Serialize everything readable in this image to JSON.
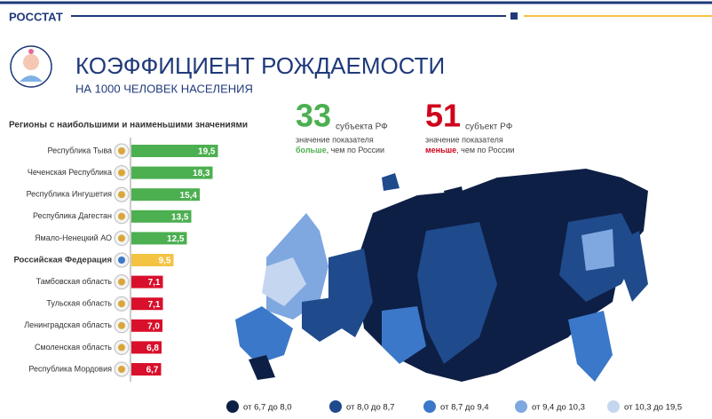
{
  "header": {
    "brand": "РОССТАТ",
    "title": "КОЭФФИЦИЕНТ РОЖДАЕМОСТИ",
    "subtitle": "НА 1000 ЧЕЛОВЕК НАСЕЛЕНИЯ"
  },
  "stats": [
    {
      "number": "33",
      "unit": "субъекта РФ",
      "line1": "значение показателя",
      "emphasis": "больше",
      "rest": ", чем по России",
      "color": "#4caf50"
    },
    {
      "number": "51",
      "unit": "субъект РФ",
      "line1": "значение показателя",
      "emphasis": "меньше",
      "rest": ", чем по России",
      "color": "#d0021b"
    }
  ],
  "map_legend": [
    {
      "label": "от 6,7 до 8,0",
      "color": "#0d1f45"
    },
    {
      "label": "от 8,0 до 8,7",
      "color": "#1f4a8c"
    },
    {
      "label": "от 8,7 до 9,4",
      "color": "#3b78c9"
    },
    {
      "label": "от 9,4 до 10,3",
      "color": "#7fa8e0"
    },
    {
      "label": "от 10,3 до 19,5",
      "color": "#c5d6f0"
    }
  ],
  "chart_data": {
    "type": "hbar",
    "title": "Регионы с наибольшими и наименьшими значениями",
    "categories": [
      "Республика Тыва",
      "Чеченская Республика",
      "Республика Ингушетия",
      "Республика Дагестан",
      "Ямало-Ненецкий АО",
      "Российская Федерация",
      "Тамбовская область",
      "Тульская область",
      "Ленинградская область",
      "Смоленская область",
      "Республика Мордовия"
    ],
    "values": [
      19.5,
      18.3,
      15.4,
      13.5,
      12.5,
      9.5,
      7.1,
      7.1,
      7.0,
      6.8,
      6.7
    ],
    "value_labels": [
      "19,5",
      "18,3",
      "15,4",
      "13,5",
      "12,5",
      "9,5",
      "7,1",
      "7,1",
      "7,0",
      "6,8",
      "6,7"
    ],
    "colors": [
      "#4caf50",
      "#4caf50",
      "#4caf50",
      "#4caf50",
      "#4caf50",
      "#f5c342",
      "#d8102c",
      "#d8102c",
      "#d8102c",
      "#d8102c",
      "#d8102c"
    ],
    "xlim": [
      0,
      20
    ]
  }
}
